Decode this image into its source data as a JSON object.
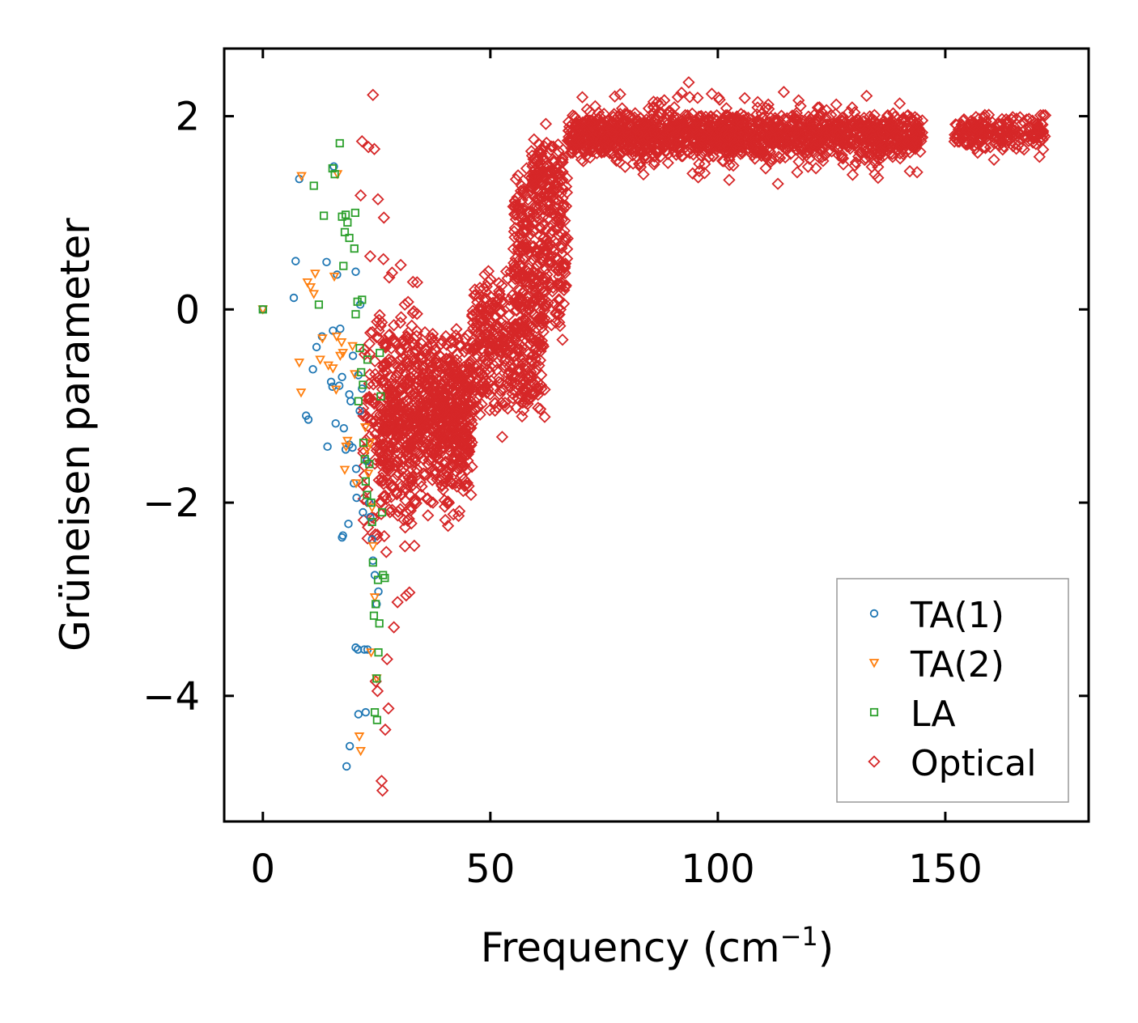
{
  "chart_data": {
    "type": "scatter",
    "xlabel": "Frequency (cm",
    "xlabel_sup": "−1",
    "xlabel_close": ")",
    "ylabel": "Grüneisen parameter",
    "xlim": [
      -8.5,
      181.5
    ],
    "ylim": [
      -5.3,
      2.7
    ],
    "xticks": [
      0,
      50,
      100,
      150
    ],
    "xtick_labels": [
      "0",
      "50",
      "100",
      "150"
    ],
    "yticks": [
      -4,
      -2,
      0,
      2
    ],
    "ytick_labels": [
      "−4",
      "−2",
      "0",
      "2"
    ],
    "legend": {
      "position": "lower-right"
    },
    "series": [
      {
        "name": "TA(1)",
        "marker": "circle",
        "color": "#1f77b4",
        "points": [
          [
            0,
            0
          ],
          [
            6.8,
            0.12
          ],
          [
            7.2,
            0.5
          ],
          [
            8,
            1.35
          ],
          [
            9.5,
            -1.1
          ],
          [
            10,
            -1.14
          ],
          [
            11,
            -0.62
          ],
          [
            11.8,
            -0.39
          ],
          [
            13,
            -0.28
          ],
          [
            14,
            0.49
          ],
          [
            14.2,
            -1.42
          ],
          [
            15,
            -0.75
          ],
          [
            15.3,
            -0.8
          ],
          [
            15.4,
            -0.22
          ],
          [
            15.6,
            1.48
          ],
          [
            16,
            -1.18
          ],
          [
            16.3,
            0.36
          ],
          [
            16.8,
            -0.79
          ],
          [
            17,
            -0.2
          ],
          [
            17.4,
            -0.7
          ],
          [
            17.8,
            -1.23
          ],
          [
            18.2,
            -1.45
          ],
          [
            18.4,
            -4.73
          ],
          [
            18.8,
            -2.22
          ],
          [
            19,
            -1.4
          ],
          [
            19,
            -0.88
          ],
          [
            19.1,
            -4.52
          ],
          [
            19.3,
            -0.95
          ],
          [
            19.8,
            -0.48
          ],
          [
            20,
            -1.8
          ],
          [
            20.4,
            -3.5
          ],
          [
            20.5,
            -1.65
          ],
          [
            20.6,
            -1.95
          ],
          [
            20.9,
            -3.52
          ],
          [
            21,
            -4.19
          ],
          [
            21,
            -0.68
          ],
          [
            21.3,
            -1.05
          ],
          [
            21.8,
            -0.82
          ],
          [
            22,
            -2.1
          ],
          [
            22.3,
            -3.52
          ],
          [
            22.6,
            -4.17
          ],
          [
            22.8,
            -1.57
          ],
          [
            23,
            -3.52
          ],
          [
            23.4,
            -2.0
          ],
          [
            23.6,
            -2.15
          ],
          [
            24,
            -2.38
          ],
          [
            24.2,
            -2.6
          ],
          [
            24.6,
            -2.75
          ],
          [
            25,
            -3.05
          ],
          [
            25.4,
            -2.92
          ],
          [
            17.4,
            -2.36
          ],
          [
            17.6,
            -2.34
          ],
          [
            19.7,
            -1.43
          ],
          [
            20.4,
            0.39
          ],
          [
            21.4,
            0.05
          ]
        ]
      },
      {
        "name": "TA(2)",
        "marker": "triangle-down",
        "color": "#ff7f0e",
        "points": [
          [
            0,
            0
          ],
          [
            8,
            -0.55
          ],
          [
            8.4,
            -0.86
          ],
          [
            8.5,
            1.38
          ],
          [
            9.8,
            0.28
          ],
          [
            10.5,
            0.23
          ],
          [
            11.2,
            0.16
          ],
          [
            11.5,
            0.37
          ],
          [
            12.6,
            -0.52
          ],
          [
            13.1,
            -0.3
          ],
          [
            14.4,
            -0.58
          ],
          [
            15.4,
            -0.61
          ],
          [
            15.7,
            0.34
          ],
          [
            16.1,
            -0.83
          ],
          [
            16.2,
            -0.28
          ],
          [
            16.4,
            1.4
          ],
          [
            17,
            -0.48
          ],
          [
            17.3,
            -0.34
          ],
          [
            17.6,
            -0.45
          ],
          [
            18,
            -1.66
          ],
          [
            18.3,
            -1.42
          ],
          [
            18.6,
            -1.36
          ],
          [
            19.7,
            -0.38
          ],
          [
            20.2,
            -0.67
          ],
          [
            20.5,
            -1.8
          ],
          [
            21.2,
            -4.42
          ],
          [
            21.5,
            -4.57
          ],
          [
            22.5,
            -1.22
          ],
          [
            22.9,
            -1.45
          ],
          [
            23.2,
            -1.7
          ],
          [
            23.5,
            -1.38
          ],
          [
            23.8,
            -3.55
          ],
          [
            24,
            -2.05
          ],
          [
            24.2,
            -2.45
          ],
          [
            24.6,
            -2.98
          ],
          [
            25,
            -3.82
          ]
        ]
      },
      {
        "name": "LA",
        "marker": "square",
        "color": "#2ca02c",
        "points": [
          [
            0,
            0
          ],
          [
            11.2,
            1.28
          ],
          [
            12.3,
            0.05
          ],
          [
            13.4,
            0.97
          ],
          [
            15.3,
            1.46
          ],
          [
            15.8,
            1.4
          ],
          [
            16.9,
            1.72
          ],
          [
            17.4,
            0.96
          ],
          [
            17.7,
            0.45
          ],
          [
            18,
            0.8
          ],
          [
            18.2,
            0.98
          ],
          [
            18.6,
            0.9
          ],
          [
            19,
            0.74
          ],
          [
            20.1,
            0.63
          ],
          [
            20.3,
            1.0
          ],
          [
            20.4,
            -0.05
          ],
          [
            20.8,
            0.08
          ],
          [
            21,
            -0.95
          ],
          [
            21.3,
            -0.4
          ],
          [
            21.6,
            -0.65
          ],
          [
            21.8,
            0.1
          ],
          [
            22,
            -0.78
          ],
          [
            22.1,
            -1.38
          ],
          [
            22.4,
            -1.55
          ],
          [
            22.6,
            -1.78
          ],
          [
            22.9,
            -1.92
          ],
          [
            23,
            -0.52
          ],
          [
            23.4,
            -1.6
          ],
          [
            23.8,
            -2.0
          ],
          [
            24,
            -2.2
          ],
          [
            24.2,
            -2.62
          ],
          [
            24.4,
            -3.17
          ],
          [
            24.6,
            -4.17
          ],
          [
            24.8,
            -3.05
          ],
          [
            25,
            -3.82
          ],
          [
            25.1,
            -4.25
          ],
          [
            25.3,
            -2.8
          ],
          [
            25.4,
            -3.55
          ],
          [
            25.6,
            -3.25
          ],
          [
            25.7,
            -0.45
          ],
          [
            25.9,
            -0.9
          ],
          [
            26.2,
            -2.1
          ],
          [
            26.4,
            -2.75
          ],
          [
            26.8,
            -2.78
          ]
        ]
      },
      {
        "name": "Optical",
        "color": "#d62728",
        "marker": "diamond",
        "outliers": [
          [
            24.2,
            2.22
          ],
          [
            21.8,
            1.74
          ],
          [
            23.2,
            1.68
          ],
          [
            24.5,
            1.66
          ],
          [
            25.3,
            1.14
          ],
          [
            26.6,
            0.95
          ],
          [
            21.5,
            1.18
          ],
          [
            26.1,
            -4.88
          ],
          [
            26.3,
            -4.98
          ],
          [
            27.6,
            -4.13
          ],
          [
            26.9,
            -4.35
          ],
          [
            25.2,
            -3.95
          ],
          [
            24.8,
            -3.85
          ],
          [
            27.3,
            -3.62
          ],
          [
            28.8,
            -3.29
          ],
          [
            29.6,
            -3.03
          ],
          [
            31.5,
            -2.96
          ],
          [
            32.2,
            -2.93
          ],
          [
            40.1,
            -2.18
          ],
          [
            40.7,
            -2.24
          ],
          [
            62.2,
            1.92
          ],
          [
            57.3,
            1.22
          ],
          [
            55.9,
            1.06
          ],
          [
            44.7,
            -1.3
          ],
          [
            52.6,
            -1.32
          ],
          [
            93.6,
            2.35
          ],
          [
            114.5,
            2.25
          ],
          [
            102.5,
            1.34
          ],
          [
            113.2,
            1.3
          ],
          [
            142.2,
            1.43
          ],
          [
            143.8,
            1.42
          ],
          [
            170.7,
            1.58
          ],
          [
            160.7,
            1.55
          ],
          [
            23.6,
            0.55
          ],
          [
            26.5,
            0.52
          ],
          [
            28.4,
            0.38
          ],
          [
            30.3,
            0.46
          ],
          [
            33.9,
            0.28
          ],
          [
            31.2,
            0.05
          ],
          [
            33.2,
            -0.02
          ]
        ],
        "clusters": [
          {
            "x": [
              22,
              34
            ],
            "y": [
              -2.7,
              0.4
            ],
            "n": 240
          },
          {
            "x": [
              26,
              46
            ],
            "y": [
              -2.2,
              -0.1
            ],
            "n": 520
          },
          {
            "x": [
              34,
              46
            ],
            "y": [
              -1.9,
              -0.2
            ],
            "n": 260
          },
          {
            "x": [
              46,
              62
            ],
            "y": [
              -1.2,
              0.5
            ],
            "n": 430
          },
          {
            "x": [
              55,
              67
            ],
            "y": [
              -0.4,
              1.6
            ],
            "n": 300
          },
          {
            "x": [
              59,
              66
            ],
            "y": [
              1.0,
              1.8
            ],
            "n": 120
          },
          {
            "x": [
              67,
              145
            ],
            "y": [
              1.55,
              2.05
            ],
            "n": 1250
          },
          {
            "x": [
              70,
              140
            ],
            "y": [
              1.3,
              2.3
            ],
            "n": 320
          },
          {
            "x": [
              152,
              172
            ],
            "y": [
              1.6,
              2.05
            ],
            "n": 200
          }
        ]
      }
    ]
  }
}
